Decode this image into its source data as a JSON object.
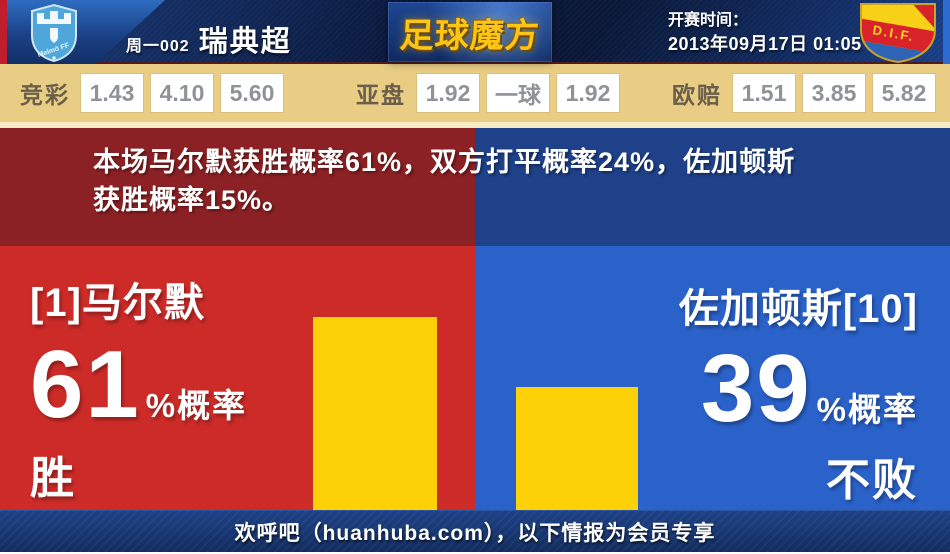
{
  "header": {
    "match_no": "周一002",
    "league": "瑞典超",
    "brand": "足球魔方",
    "kickoff_label": "开赛时间：",
    "kickoff_time": "2013年09月17日 01:05",
    "home_logo_text": "Malmö FF",
    "away_logo_text": "D.I.F."
  },
  "odds": {
    "groups": [
      {
        "label": "竞彩",
        "values": [
          "1.43",
          "4.10",
          "5.60"
        ]
      },
      {
        "label": "亚盘",
        "values": [
          "1.92",
          "一球",
          "1.92"
        ]
      },
      {
        "label": "欧赔",
        "values": [
          "1.51",
          "3.85",
          "5.82"
        ]
      }
    ]
  },
  "summary": {
    "line1": "本场马尔默获胜概率61%，双方打平概率24%，佐加顿斯",
    "line2": "获胜概率15%。",
    "probabilities": {
      "home_win": 61,
      "draw": 24,
      "away_win": 15
    }
  },
  "home": {
    "name": "[1]马尔默",
    "percent": "61",
    "percent_suffix": "%概率",
    "outcome": "胜"
  },
  "away": {
    "name": "佐加顿斯[10]",
    "percent": "39",
    "percent_suffix": "%概率",
    "outcome": "不败"
  },
  "footer": {
    "text": "欢呼吧（huanhuba.com），以下情报为会员专享"
  },
  "colors": {
    "home_red": "#cd2b28",
    "away_blue": "#2a62ca",
    "summary_red": "#8b2124",
    "summary_blue": "#1f4189",
    "bar_yellow": "#fdd108",
    "odds_bg": "#e9cd85",
    "header_navy": "#0c1c40",
    "brand_gold": "#fdc515"
  },
  "chart_data": {
    "type": "bar",
    "categories": [
      "马尔默 胜",
      "佐加顿斯 不败"
    ],
    "values": [
      61,
      39
    ],
    "unit": "%",
    "bar_color": "#fdd108",
    "title": ""
  }
}
